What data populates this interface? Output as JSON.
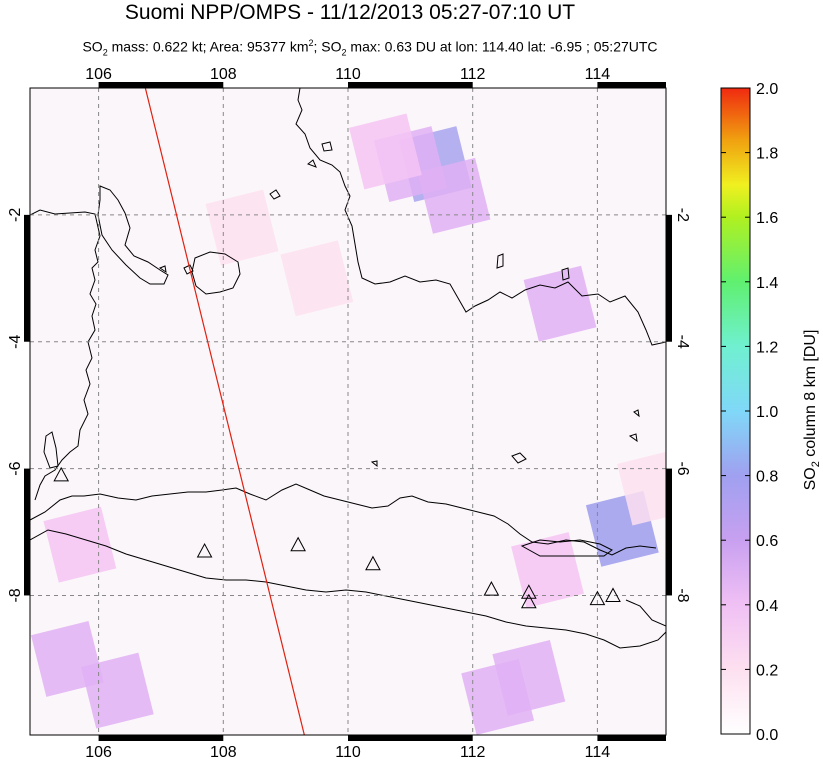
{
  "title": "Suomi NPP/OMPS - 11/12/2013 05:27-07:10 UT",
  "subtitle": {
    "p1": "SO",
    "s1": "2",
    "p2": " mass: 0.622 kt; Area: 95377 km",
    "s2": "2",
    "p3": "; SO",
    "s3": "2",
    "p4": " max: 0.63 DU at lon: 114.40 lat: -6.95 ; 05:27UTC"
  },
  "colorbar": {
    "label_main": "SO",
    "label_sub": "2",
    "label_rest": " column 8 km [DU]",
    "ticks": [
      "0.0",
      "0.2",
      "0.4",
      "0.6",
      "0.8",
      "1.0",
      "1.2",
      "1.4",
      "1.6",
      "1.8",
      "2.0"
    ],
    "range": [
      0,
      2.0
    ],
    "colors": [
      "#ffffff",
      "#fde0f0",
      "#f4c0f4",
      "#d8a0f0",
      "#a89ef0",
      "#7fb0f0",
      "#7ff0f0",
      "#60f090",
      "#80f030",
      "#e8f020",
      "#f0a010",
      "#f03010"
    ]
  },
  "chart_data": {
    "type": "heatmap",
    "title": "Suomi NPP/OMPS - 11/12/2013 05:27-07:10 UT",
    "xlim": [
      104.9,
      115.1
    ],
    "ylim": [
      -10.2,
      0.0
    ],
    "x_ticks": [
      "106",
      "108",
      "110",
      "112",
      "114"
    ],
    "x_tick_values": [
      106,
      108,
      110,
      112,
      114
    ],
    "y_ticks": [
      "-2",
      "-4",
      "-6",
      "-8"
    ],
    "y_tick_values": [
      -2,
      -4,
      -6,
      -8
    ],
    "grid": true,
    "max_value": {
      "value": 0.63,
      "lon": 114.4,
      "lat": -6.95
    },
    "cells": [
      {
        "lon": 111.4,
        "lat": -1.2,
        "value": 0.55
      },
      {
        "lon": 111.0,
        "lat": -1.2,
        "value": 0.35
      },
      {
        "lon": 111.7,
        "lat": -1.7,
        "value": 0.32
      },
      {
        "lon": 110.6,
        "lat": -1.0,
        "value": 0.28
      },
      {
        "lon": 113.4,
        "lat": -3.4,
        "value": 0.3
      },
      {
        "lon": 114.4,
        "lat": -6.95,
        "value": 0.63
      },
      {
        "lon": 113.2,
        "lat": -7.6,
        "value": 0.25
      },
      {
        "lon": 112.9,
        "lat": -9.3,
        "value": 0.35
      },
      {
        "lon": 112.4,
        "lat": -9.6,
        "value": 0.3
      },
      {
        "lon": 105.5,
        "lat": -9.0,
        "value": 0.3
      },
      {
        "lon": 106.3,
        "lat": -9.5,
        "value": 0.35
      },
      {
        "lon": 109.5,
        "lat": -3.0,
        "value": 0.12
      },
      {
        "lon": 108.3,
        "lat": -2.2,
        "value": 0.12
      },
      {
        "lon": 105.7,
        "lat": -7.2,
        "value": 0.2
      },
      {
        "lon": 114.9,
        "lat": -6.3,
        "value": 0.15
      }
    ],
    "volcanoes": [
      {
        "lon": 105.4,
        "lat": -6.1
      },
      {
        "lon": 107.7,
        "lat": -7.3
      },
      {
        "lon": 109.2,
        "lat": -7.2
      },
      {
        "lon": 110.4,
        "lat": -7.5
      },
      {
        "lon": 112.3,
        "lat": -7.9
      },
      {
        "lon": 112.9,
        "lat": -7.95
      },
      {
        "lon": 112.9,
        "lat": -8.1
      },
      {
        "lon": 114.0,
        "lat": -8.05
      },
      {
        "lon": 114.25,
        "lat": -8.0
      }
    ],
    "swath_edge": [
      {
        "lon": 106.75,
        "lat": 0.0
      },
      {
        "lon": 109.3,
        "lat": -10.2
      }
    ]
  }
}
